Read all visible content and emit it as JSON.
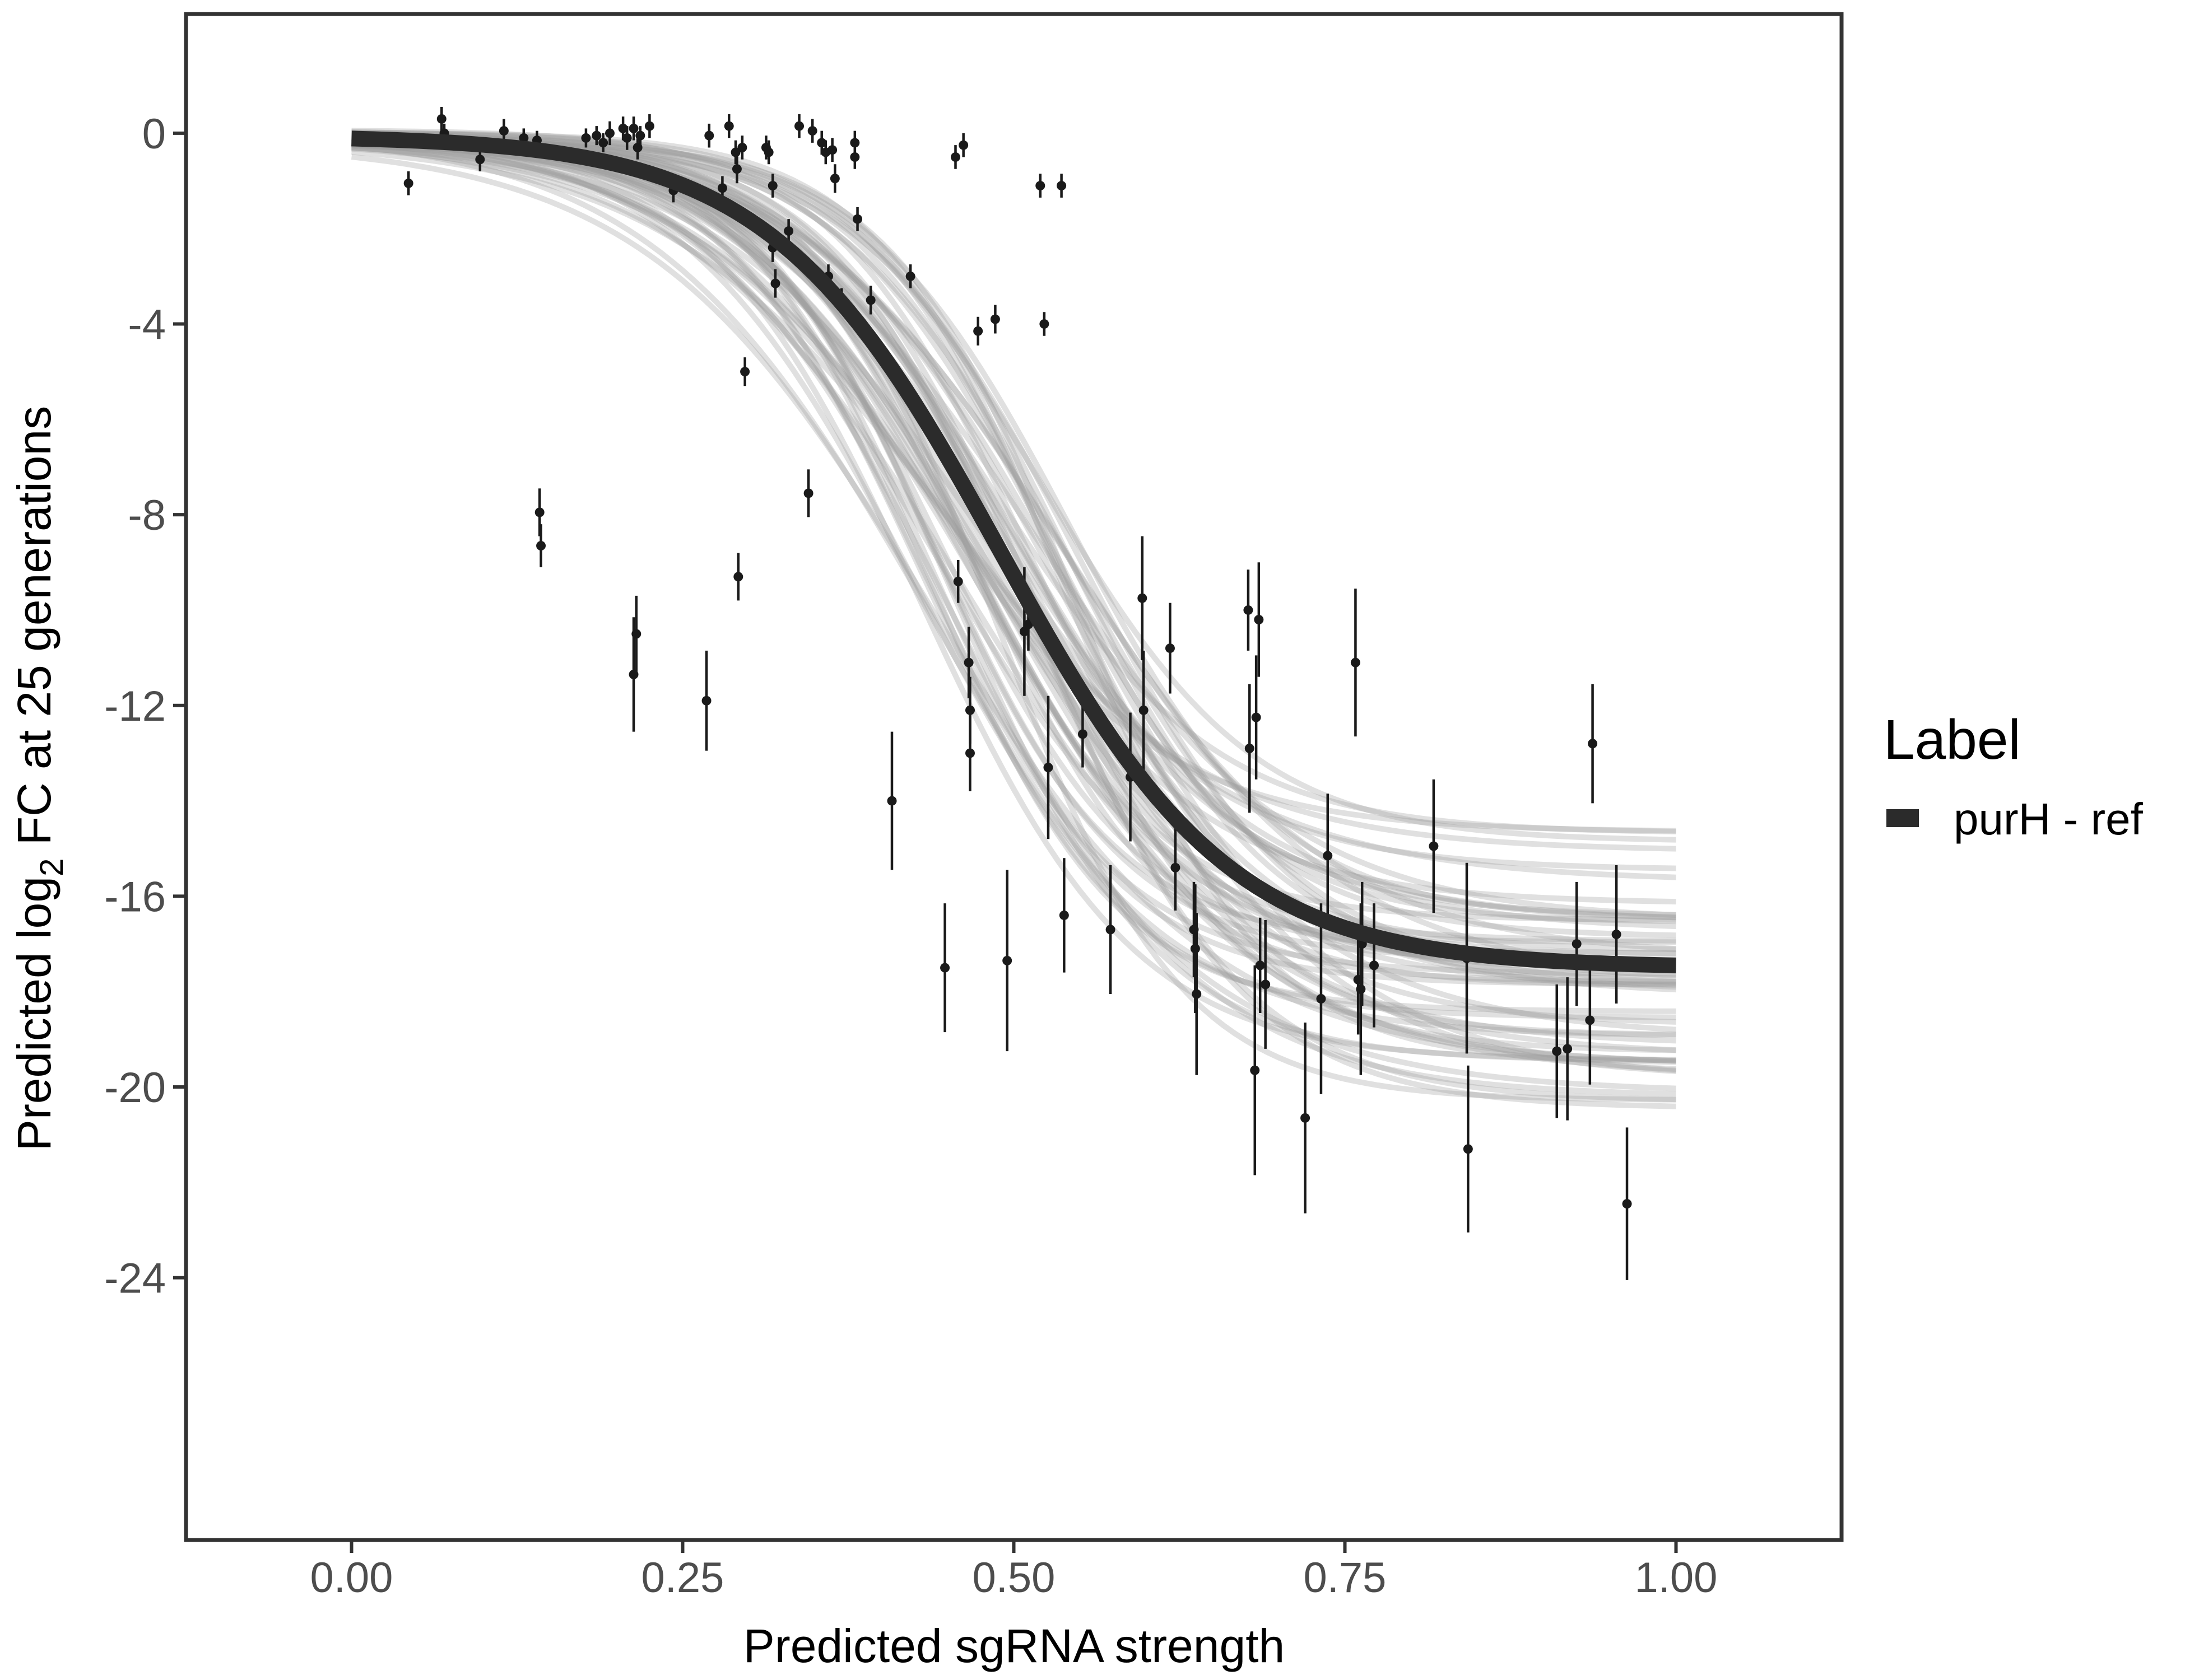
{
  "chart_data": {
    "type": "scatter",
    "xlabel": "Predicted sgRNA strength",
    "ylabel": "Predicted  log2 FC at 25 generations",
    "ylabel_parts": {
      "before": "Predicted  log",
      "sub": "2",
      "after": " FC at 25 generations"
    },
    "xlim": [
      -0.125,
      1.125
    ],
    "ylim": [
      -29.5,
      2.5
    ],
    "x_ticks": [
      0.0,
      0.25,
      0.5,
      0.75,
      1.0
    ],
    "x_tick_labels": [
      "0.00",
      "0.25",
      "0.50",
      "0.75",
      "1.00"
    ],
    "y_ticks": [
      0,
      -4,
      -8,
      -12,
      -16,
      -20,
      -24
    ],
    "y_tick_labels": [
      "0",
      "-4",
      "-8",
      "-12",
      "-16",
      "-20",
      "-24"
    ],
    "grid": false,
    "legend": {
      "title": "Label",
      "entries": [
        "purH - ref"
      ],
      "position": "right"
    },
    "fit_curve": {
      "name": "purH - ref",
      "color": "#2b2b2b",
      "bottom": -17.5,
      "top": -0.05,
      "midpoint": 0.49,
      "steepness": 11.5
    },
    "sample_curves": {
      "color": "#9e9e9e",
      "count": 60
    },
    "points": [
      {
        "x": 0.043,
        "y": -1.05,
        "err": 0.25
      },
      {
        "x": 0.068,
        "y": 0.3,
        "err": 0.25
      },
      {
        "x": 0.07,
        "y": 0.0,
        "err": 0.2
      },
      {
        "x": 0.097,
        "y": -0.55,
        "err": 0.25
      },
      {
        "x": 0.115,
        "y": 0.05,
        "err": 0.25
      },
      {
        "x": 0.13,
        "y": -0.1,
        "err": 0.2
      },
      {
        "x": 0.14,
        "y": -0.15,
        "err": 0.2
      },
      {
        "x": 0.142,
        "y": -7.95,
        "err": 0.5
      },
      {
        "x": 0.143,
        "y": -8.65,
        "err": 0.45
      },
      {
        "x": 0.177,
        "y": -0.1,
        "err": 0.2
      },
      {
        "x": 0.185,
        "y": -0.05,
        "err": 0.2
      },
      {
        "x": 0.19,
        "y": -0.2,
        "err": 0.2
      },
      {
        "x": 0.195,
        "y": 0.0,
        "err": 0.25
      },
      {
        "x": 0.205,
        "y": 0.1,
        "err": 0.25
      },
      {
        "x": 0.208,
        "y": -0.1,
        "err": 0.25
      },
      {
        "x": 0.213,
        "y": 0.1,
        "err": 0.25
      },
      {
        "x": 0.213,
        "y": -11.35,
        "err": 1.2
      },
      {
        "x": 0.215,
        "y": -10.5,
        "err": 0.8
      },
      {
        "x": 0.216,
        "y": -0.3,
        "err": 0.25
      },
      {
        "x": 0.218,
        "y": -0.05,
        "err": 0.2
      },
      {
        "x": 0.225,
        "y": 0.15,
        "err": 0.25
      },
      {
        "x": 0.243,
        "y": -1.2,
        "err": 0.25
      },
      {
        "x": 0.268,
        "y": -11.9,
        "err": 1.05
      },
      {
        "x": 0.27,
        "y": -0.05,
        "err": 0.25
      },
      {
        "x": 0.28,
        "y": -1.15,
        "err": 0.25
      },
      {
        "x": 0.285,
        "y": 0.15,
        "err": 0.25
      },
      {
        "x": 0.29,
        "y": -0.4,
        "err": 0.25
      },
      {
        "x": 0.291,
        "y": -0.75,
        "err": 0.3
      },
      {
        "x": 0.292,
        "y": -9.3,
        "err": 0.5
      },
      {
        "x": 0.295,
        "y": -0.3,
        "err": 0.25
      },
      {
        "x": 0.297,
        "y": -5.0,
        "err": 0.3
      },
      {
        "x": 0.313,
        "y": -0.3,
        "err": 0.25
      },
      {
        "x": 0.315,
        "y": -0.4,
        "err": 0.25
      },
      {
        "x": 0.318,
        "y": -1.1,
        "err": 0.25
      },
      {
        "x": 0.318,
        "y": -2.4,
        "err": 0.3
      },
      {
        "x": 0.32,
        "y": -3.15,
        "err": 0.3
      },
      {
        "x": 0.33,
        "y": -2.05,
        "err": 0.25
      },
      {
        "x": 0.338,
        "y": 0.15,
        "err": 0.25
      },
      {
        "x": 0.345,
        "y": -7.55,
        "err": 0.5
      },
      {
        "x": 0.348,
        "y": 0.05,
        "err": 0.25
      },
      {
        "x": 0.355,
        "y": -0.2,
        "err": 0.25
      },
      {
        "x": 0.358,
        "y": -0.4,
        "err": 0.25
      },
      {
        "x": 0.36,
        "y": -3.0,
        "err": 0.25
      },
      {
        "x": 0.363,
        "y": -0.35,
        "err": 0.25
      },
      {
        "x": 0.365,
        "y": -0.95,
        "err": 0.3
      },
      {
        "x": 0.37,
        "y": -3.5,
        "err": 0.25
      },
      {
        "x": 0.38,
        "y": -0.2,
        "err": 0.25
      },
      {
        "x": 0.38,
        "y": -0.5,
        "err": 0.25
      },
      {
        "x": 0.382,
        "y": -1.8,
        "err": 0.25
      },
      {
        "x": 0.392,
        "y": -3.5,
        "err": 0.3
      },
      {
        "x": 0.408,
        "y": -14.0,
        "err": 1.45
      },
      {
        "x": 0.422,
        "y": -3.0,
        "err": 0.25
      },
      {
        "x": 0.448,
        "y": -17.5,
        "err": 1.35
      },
      {
        "x": 0.456,
        "y": -0.5,
        "err": 0.25
      },
      {
        "x": 0.458,
        "y": -9.4,
        "err": 0.45
      },
      {
        "x": 0.462,
        "y": -0.25,
        "err": 0.25
      },
      {
        "x": 0.466,
        "y": -11.1,
        "err": 0.75
      },
      {
        "x": 0.467,
        "y": -12.1,
        "err": 0.7
      },
      {
        "x": 0.467,
        "y": -13.0,
        "err": 0.8
      },
      {
        "x": 0.473,
        "y": -4.15,
        "err": 0.3
      },
      {
        "x": 0.486,
        "y": -3.9,
        "err": 0.3
      },
      {
        "x": 0.495,
        "y": -17.35,
        "err": 1.9
      },
      {
        "x": 0.508,
        "y": -10.45,
        "err": 1.35
      },
      {
        "x": 0.511,
        "y": -10.3,
        "err": 0.55
      },
      {
        "x": 0.52,
        "y": -1.1,
        "err": 0.25
      },
      {
        "x": 0.523,
        "y": -4.0,
        "err": 0.25
      },
      {
        "x": 0.526,
        "y": -13.3,
        "err": 1.5
      },
      {
        "x": 0.536,
        "y": -1.1,
        "err": 0.25
      },
      {
        "x": 0.538,
        "y": -16.4,
        "err": 1.2
      },
      {
        "x": 0.552,
        "y": -12.6,
        "err": 0.7
      },
      {
        "x": 0.573,
        "y": -16.7,
        "err": 1.35
      },
      {
        "x": 0.588,
        "y": -13.5,
        "err": 1.35
      },
      {
        "x": 0.597,
        "y": -9.75,
        "err": 1.3
      },
      {
        "x": 0.598,
        "y": -12.1,
        "err": 1.25
      },
      {
        "x": 0.618,
        "y": -10.8,
        "err": 0.95
      },
      {
        "x": 0.622,
        "y": -15.4,
        "err": 0.9
      },
      {
        "x": 0.636,
        "y": -16.7,
        "err": 1.0
      },
      {
        "x": 0.637,
        "y": -17.1,
        "err": 1.35
      },
      {
        "x": 0.638,
        "y": -18.05,
        "err": 1.7
      },
      {
        "x": 0.677,
        "y": -10.0,
        "err": 0.85
      },
      {
        "x": 0.678,
        "y": -12.9,
        "err": 1.35
      },
      {
        "x": 0.682,
        "y": -19.65,
        "err": 2.2
      },
      {
        "x": 0.683,
        "y": -12.25,
        "err": 1.3
      },
      {
        "x": 0.685,
        "y": -10.2,
        "err": 1.2
      },
      {
        "x": 0.686,
        "y": -17.45,
        "err": 1.0
      },
      {
        "x": 0.69,
        "y": -17.85,
        "err": 1.35
      },
      {
        "x": 0.72,
        "y": -20.65,
        "err": 2.0
      },
      {
        "x": 0.732,
        "y": -18.15,
        "err": 2.0
      },
      {
        "x": 0.737,
        "y": -15.15,
        "err": 1.3
      },
      {
        "x": 0.758,
        "y": -11.1,
        "err": 1.55
      },
      {
        "x": 0.76,
        "y": -17.75,
        "err": 1.15
      },
      {
        "x": 0.762,
        "y": -17.95,
        "err": 1.8
      },
      {
        "x": 0.763,
        "y": -17.0,
        "err": 1.3
      },
      {
        "x": 0.772,
        "y": -17.45,
        "err": 1.3
      },
      {
        "x": 0.817,
        "y": -14.95,
        "err": 1.4
      },
      {
        "x": 0.842,
        "y": -17.3,
        "err": 2.0
      },
      {
        "x": 0.843,
        "y": -21.3,
        "err": 1.75
      },
      {
        "x": 0.91,
        "y": -19.25,
        "err": 1.4
      },
      {
        "x": 0.918,
        "y": -19.2,
        "err": 1.5
      },
      {
        "x": 0.925,
        "y": -17.0,
        "err": 1.3
      },
      {
        "x": 0.935,
        "y": -18.6,
        "err": 1.35
      },
      {
        "x": 0.937,
        "y": -12.8,
        "err": 1.25
      },
      {
        "x": 0.955,
        "y": -16.8,
        "err": 1.45
      },
      {
        "x": 0.963,
        "y": -22.45,
        "err": 1.6
      }
    ]
  }
}
